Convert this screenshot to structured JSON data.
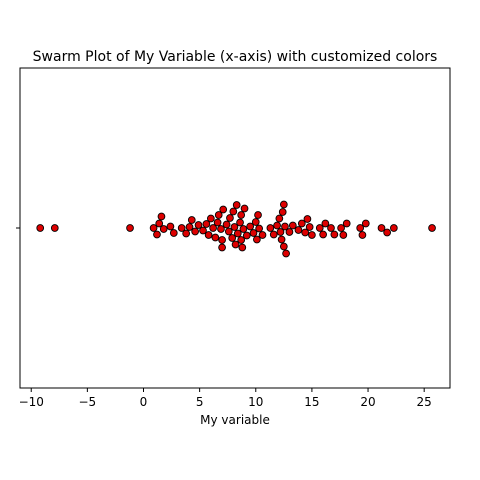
{
  "chart_data": {
    "type": "scatter",
    "title": "Swarm Plot of My Variable (x-axis) with customized colors",
    "xlabel": "My variable",
    "ylabel": "",
    "xlim": [
      -11,
      27.3
    ],
    "x_ticks": [
      -10,
      -5,
      0,
      5,
      10,
      15,
      20,
      25
    ],
    "x_tick_labels": [
      "−10",
      "−5",
      "0",
      "5",
      "10",
      "15",
      "20",
      "25"
    ],
    "grid": false,
    "marker_fill": "#dd0000",
    "marker_edge": "#000000",
    "values": [
      -9.2,
      -7.9,
      -1.2,
      0.9,
      1.2,
      1.4,
      1.6,
      1.8,
      2.4,
      2.7,
      3.4,
      3.8,
      4.1,
      4.3,
      4.6,
      4.9,
      5.3,
      5.6,
      5.8,
      6.0,
      6.2,
      6.4,
      6.6,
      6.7,
      6.9,
      7.0,
      7.0,
      7.1,
      7.4,
      7.6,
      7.7,
      7.9,
      8.0,
      8.1,
      8.2,
      8.3,
      8.4,
      8.6,
      8.7,
      8.7,
      8.8,
      8.9,
      9.0,
      9.2,
      9.5,
      9.8,
      10.0,
      10.1,
      10.2,
      10.3,
      10.6,
      11.3,
      11.6,
      11.9,
      12.1,
      12.2,
      12.3,
      12.4,
      12.5,
      12.5,
      12.6,
      12.7,
      13.0,
      13.3,
      13.8,
      14.1,
      14.4,
      14.6,
      14.8,
      15.0,
      15.7,
      16.0,
      16.2,
      16.7,
      17.0,
      17.6,
      17.8,
      18.1,
      19.3,
      19.5,
      19.8,
      21.2,
      21.7,
      22.3,
      25.7
    ]
  }
}
